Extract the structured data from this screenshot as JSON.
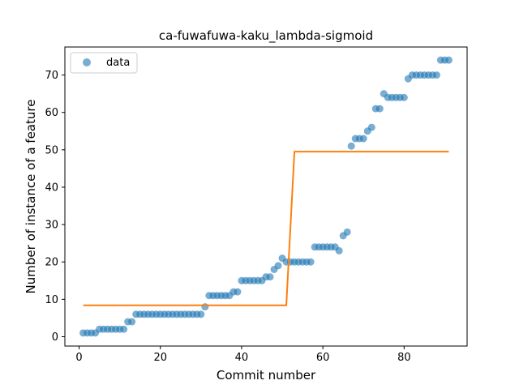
{
  "chart_data": {
    "type": "scatter",
    "title": "ca-fuwafuwa-kaku_lambda-sigmoid",
    "xlabel": "Commit number",
    "ylabel": "Number of instance of a feature",
    "xlim": [
      -3.5,
      95.5
    ],
    "ylim": [
      -2.5,
      77.5
    ],
    "xticks": [
      0,
      20,
      40,
      60,
      80
    ],
    "yticks": [
      0,
      10,
      20,
      30,
      40,
      50,
      60,
      70
    ],
    "grid": false,
    "legend": {
      "entries": [
        "data"
      ],
      "placement": "top-left"
    },
    "colors": {
      "data": "#1f77b4",
      "fit": "#ff7f0e"
    },
    "series": [
      {
        "name": "data",
        "kind": "scatter",
        "x": [
          1,
          2,
          3,
          4,
          5,
          6,
          7,
          8,
          9,
          10,
          11,
          12,
          13,
          14,
          15,
          16,
          17,
          18,
          19,
          20,
          21,
          22,
          23,
          24,
          25,
          26,
          27,
          28,
          29,
          30,
          31,
          32,
          33,
          34,
          35,
          36,
          37,
          38,
          39,
          40,
          41,
          42,
          43,
          44,
          45,
          46,
          47,
          48,
          49,
          50,
          51,
          52,
          53,
          54,
          55,
          56,
          57,
          58,
          59,
          60,
          61,
          62,
          63,
          64,
          65,
          66,
          67,
          68,
          69,
          70,
          71,
          72,
          73,
          74,
          75,
          76,
          77,
          78,
          79,
          80,
          81,
          82,
          83,
          84,
          85,
          86,
          87,
          88,
          89,
          90,
          91
        ],
        "y": [
          1,
          1,
          1,
          1,
          2,
          2,
          2,
          2,
          2,
          2,
          2,
          4,
          4,
          6,
          6,
          6,
          6,
          6,
          6,
          6,
          6,
          6,
          6,
          6,
          6,
          6,
          6,
          6,
          6,
          6,
          8,
          11,
          11,
          11,
          11,
          11,
          11,
          12,
          12,
          15,
          15,
          15,
          15,
          15,
          15,
          16,
          16,
          18,
          19,
          21,
          20,
          20,
          20,
          20,
          20,
          20,
          20,
          24,
          24,
          24,
          24,
          24,
          24,
          23,
          27,
          28,
          51,
          53,
          53,
          53,
          55,
          56,
          61,
          61,
          65,
          64,
          64,
          64,
          64,
          64,
          69,
          70,
          70,
          70,
          70,
          70,
          70,
          70,
          74,
          74,
          74
        ]
      },
      {
        "name": "",
        "kind": "line",
        "x": [
          1,
          51,
          53,
          91
        ],
        "y": [
          8.4,
          8.4,
          49.5,
          49.5
        ]
      }
    ]
  }
}
